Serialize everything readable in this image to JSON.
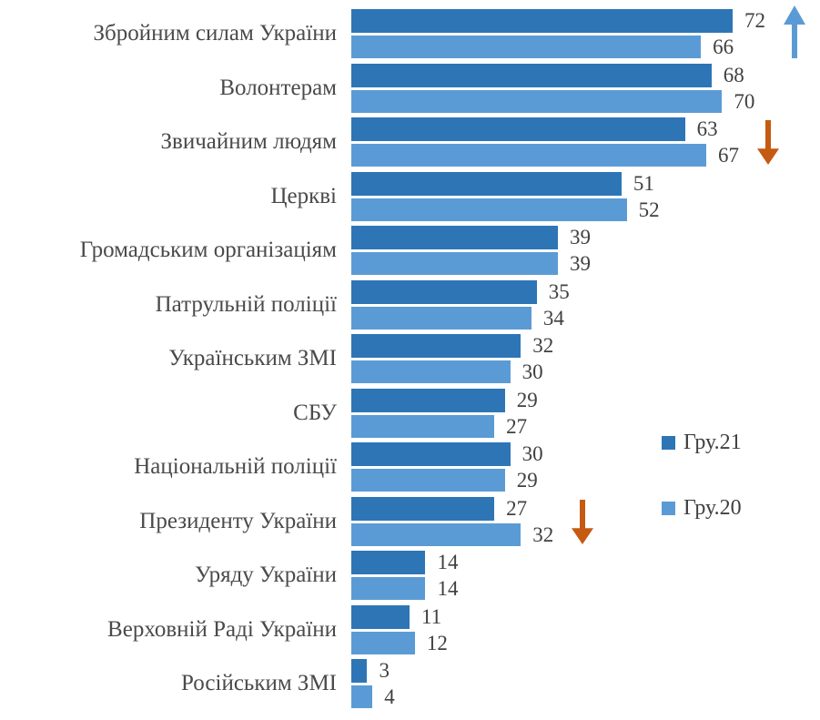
{
  "colors": {
    "background": "#ffffff",
    "text": "#404040",
    "category_text": "#4a4a4a"
  },
  "chart_data": {
    "type": "bar",
    "orientation": "horizontal",
    "title": "",
    "xlabel": "",
    "ylabel": "",
    "xlim": [
      0,
      77
    ],
    "grid": false,
    "data_labels": true,
    "legend_position": "right",
    "categories": [
      "Збройним силам України",
      "Волонтерам",
      "Звичайним людям",
      "Церкві",
      "Громадським організаціям",
      "Патрульній поліції",
      "Українським ЗМІ",
      "СБУ",
      "Національній поліції",
      "Президенту України",
      "Уряду України",
      "Верховній Раді України",
      "Російським ЗМІ"
    ],
    "series": [
      {
        "name": "Гру.21",
        "color": "#2E75B6",
        "values": [
          72,
          68,
          63,
          51,
          39,
          35,
          32,
          29,
          30,
          27,
          14,
          11,
          3
        ]
      },
      {
        "name": "Гру.20",
        "color": "#5B9BD5",
        "values": [
          66,
          70,
          67,
          52,
          39,
          34,
          30,
          27,
          29,
          32,
          14,
          12,
          4
        ]
      }
    ],
    "annotations": [
      {
        "type": "trend-arrow",
        "direction": "up",
        "category_index": 0,
        "category": "Збройним силам України",
        "color": "#5B9BD5"
      },
      {
        "type": "trend-arrow",
        "direction": "down",
        "category_index": 2,
        "category": "Звичайним людям",
        "color": "#C55A11"
      },
      {
        "type": "trend-arrow",
        "direction": "down",
        "category_index": 9,
        "category": "Президенту України",
        "color": "#C55A11"
      }
    ]
  }
}
